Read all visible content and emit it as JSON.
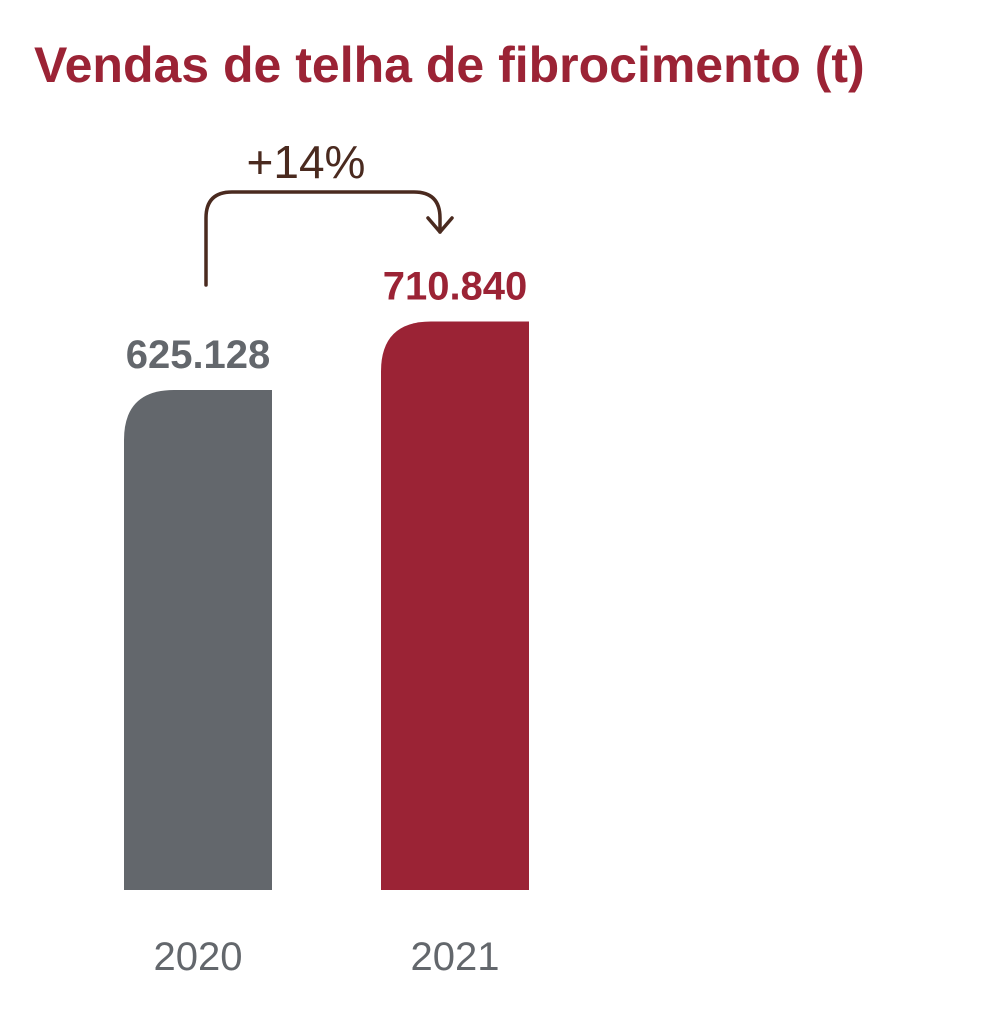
{
  "chart_data": {
    "type": "bar",
    "title": "Vendas de telha de fibrocimento (t)",
    "categories": [
      "2020",
      "2021"
    ],
    "values": [
      625128,
      710840
    ],
    "value_labels": [
      "625.128",
      "710.840"
    ],
    "annotation": "+14%",
    "xlabel": "",
    "ylabel": "",
    "grid": false,
    "colors": {
      "title": "#9b2335",
      "bars": [
        "#63676c",
        "#9b2335"
      ],
      "value_labels": [
        "#63676c",
        "#9b2335"
      ],
      "category_labels": "#63676c",
      "annotation": "#4a2a1f"
    }
  }
}
